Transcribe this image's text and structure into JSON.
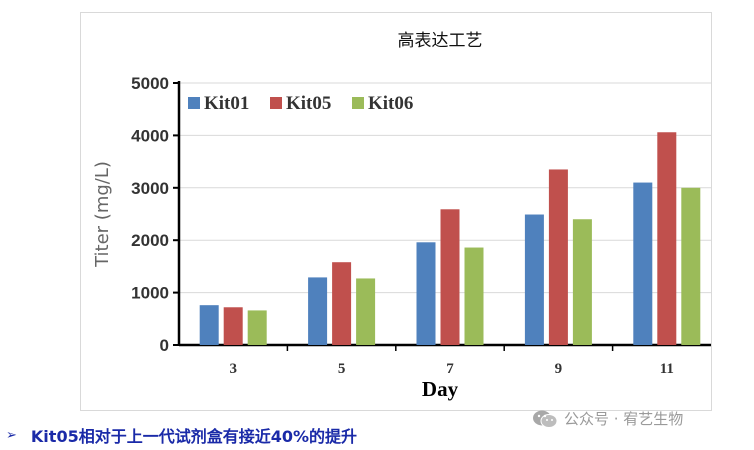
{
  "chart_data": {
    "type": "bar",
    "title": "高表达工艺",
    "xlabel": "Day",
    "ylabel": "Titer (mg/L)",
    "categories": [
      "3",
      "5",
      "7",
      "9",
      "11"
    ],
    "ylim": [
      0,
      5000
    ],
    "yticks": [
      0,
      1000,
      2000,
      3000,
      4000,
      5000
    ],
    "grid": true,
    "legend_position": "top-left",
    "series": [
      {
        "name": "Kit01",
        "color": "#4f81bd",
        "values": [
          760,
          1290,
          1960,
          2490,
          3100
        ]
      },
      {
        "name": "Kit05",
        "color": "#c0504d",
        "values": [
          720,
          1580,
          2590,
          3350,
          4060
        ]
      },
      {
        "name": "Kit06",
        "color": "#9bbb59",
        "values": [
          660,
          1270,
          1860,
          2400,
          3000
        ]
      }
    ]
  },
  "footnote": {
    "bullet": "➢",
    "text": "Kit05相对于上一代试剂盒有接近40%的提升"
  },
  "watermark": {
    "icon": "wechat-icon",
    "text": "公众号 · 宥艺生物"
  }
}
